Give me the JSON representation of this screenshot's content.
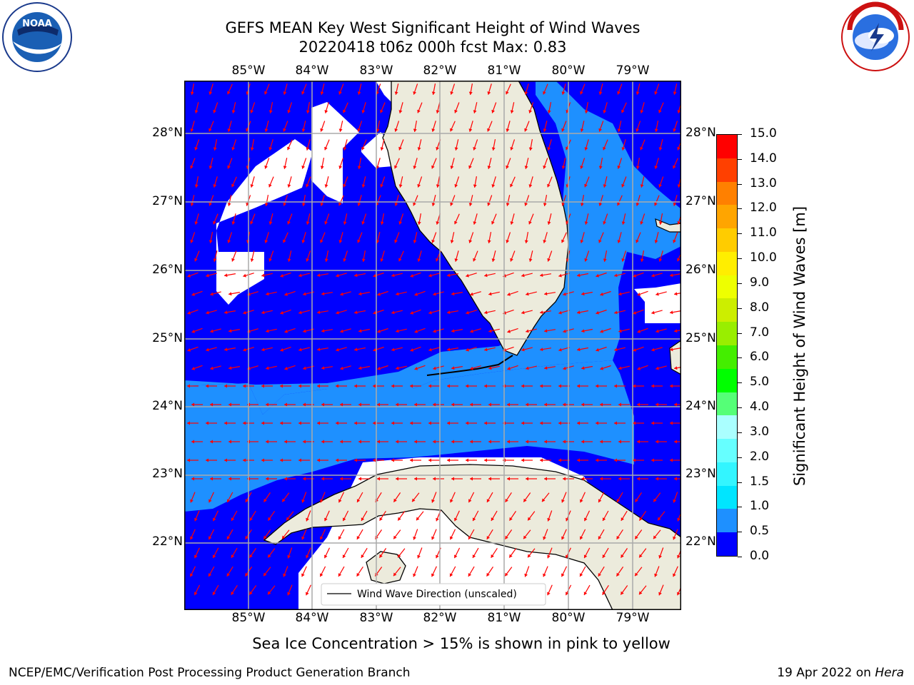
{
  "title": "GEFS MEAN Key West Significant Height of Wind Waves",
  "subtitle": "20220418 t06z 000h fcst   Max: 0.83",
  "lon_ticks": [
    "85°W",
    "84°W",
    "83°W",
    "82°W",
    "81°W",
    "80°W",
    "79°W"
  ],
  "lat_ticks": [
    "28°N",
    "27°N",
    "26°N",
    "25°N",
    "24°N",
    "23°N",
    "22°N"
  ],
  "legend_label": "Wind Wave Direction (unscaled)",
  "colorbar": {
    "label": "Significant Height of Wind Waves [m]",
    "ticks": [
      "0.0",
      "0.5",
      "1.0",
      "1.5",
      "2.0",
      "3.0",
      "4.0",
      "5.0",
      "6.0",
      "7.0",
      "8.0",
      "9.0",
      "10.0",
      "11.0",
      "12.0",
      "13.0",
      "14.0",
      "15.0"
    ],
    "colors": [
      "#0000ff",
      "#1e90ff",
      "#00e5ff",
      "#33f5ff",
      "#66ffff",
      "#aaffff",
      "#55ff77",
      "#00ff00",
      "#44ee00",
      "#99ee00",
      "#ccee00",
      "#eeff00",
      "#ffee00",
      "#ffcc00",
      "#ffa500",
      "#ff8000",
      "#ff4000",
      "#ff0000"
    ]
  },
  "map_colors": {
    "low": "#0000ff",
    "mid": "#1e90ff",
    "land": "#ecebdc",
    "arrow": "#ff0000"
  },
  "footer_note": "Sea Ice Concentration > 15% is shown in pink to yellow",
  "credit": "NCEP/EMC/Verification Post Processing Product Generation Branch",
  "date_prefix": "19 Apr 2022 on ",
  "date_machine": "Hera",
  "logos": {
    "left": "NOAA",
    "left_ring": "NATIONAL OCEANIC AND ATMOSPHERIC ADMINISTRATION · U.S. DEPARTMENT OF COMMERCE",
    "right_ring": "NATIONAL WEATHER SERVICE"
  }
}
